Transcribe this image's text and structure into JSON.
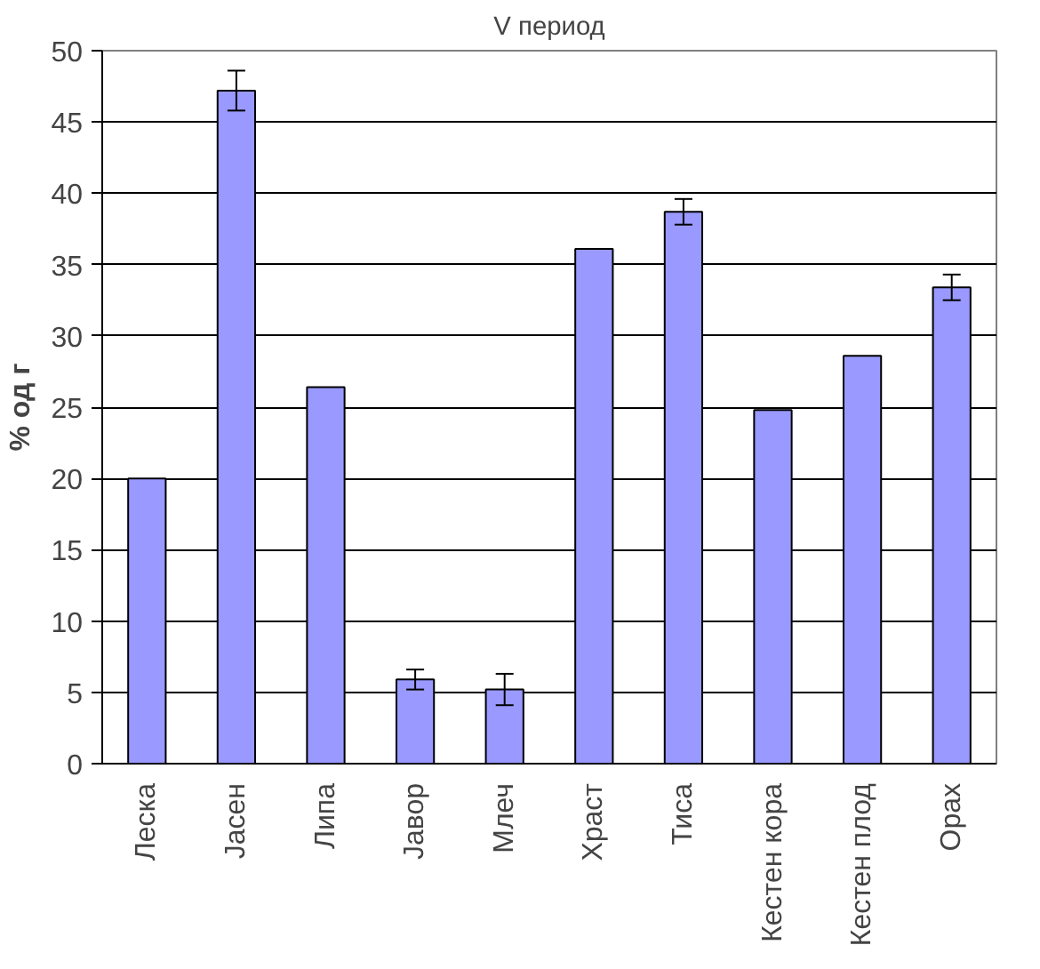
{
  "chart_data": {
    "type": "bar",
    "title": "V период",
    "ylabel": "% од г",
    "categories": [
      "Леска",
      "Јасен",
      "Липа",
      "Јавор",
      "Млеч",
      "Храст",
      "Тиса",
      "Кестен кора",
      "Кестен плод",
      "Орах"
    ],
    "values": [
      20.0,
      47.2,
      26.4,
      5.9,
      5.2,
      36.1,
      38.7,
      24.8,
      28.6,
      33.4
    ],
    "errors": [
      null,
      1.4,
      null,
      0.7,
      1.1,
      null,
      0.9,
      null,
      null,
      0.9
    ],
    "color": "#9999ff",
    "ylim": [
      0,
      50
    ],
    "yticks": [
      0,
      5,
      10,
      15,
      20,
      25,
      30,
      35,
      40,
      45,
      50
    ],
    "grid": "y"
  }
}
